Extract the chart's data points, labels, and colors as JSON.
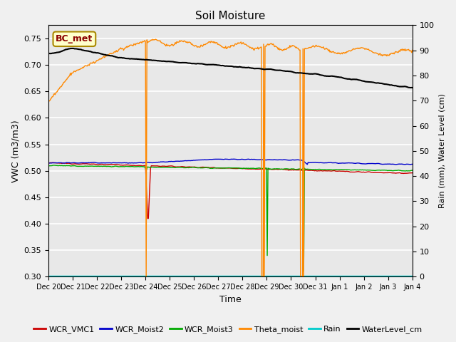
{
  "title": "Soil Moisture",
  "xlabel": "Time",
  "ylabel_left": "VWC (m3/m3)",
  "ylabel_right": "Rain (mm), Water Level (cm)",
  "ylim_left": [
    0.3,
    0.775
  ],
  "ylim_right": [
    0,
    100
  ],
  "yticks_left": [
    0.3,
    0.35,
    0.4,
    0.45,
    0.5,
    0.55,
    0.6,
    0.65,
    0.7,
    0.75
  ],
  "yticks_right": [
    0,
    10,
    20,
    30,
    40,
    50,
    60,
    70,
    80,
    90,
    100
  ],
  "fig_bg": "#f0f0f0",
  "plot_bg": "#e8e8e8",
  "grid_color": "#ffffff",
  "legend_labels": [
    "WCR_VMC1",
    "WCR_Moist2",
    "WCR_Moist3",
    "Theta_moist",
    "Rain",
    "WaterLevel_cm"
  ],
  "legend_colors": [
    "#cc0000",
    "#0000cc",
    "#00aa00",
    "#ff8800",
    "#00cccc",
    "#000000"
  ],
  "num_points": 500,
  "date_labels": [
    "Dec 20",
    "Dec 21",
    "Dec 22",
    "Dec 23",
    "Dec 24",
    "Dec 25",
    "Dec 26",
    "Dec 27",
    "Dec 28",
    "Dec 29",
    "Dec 30",
    "Dec 31",
    "Jan 1",
    "Jan 2",
    "Jan 3",
    "Jan 4"
  ],
  "xlim": [
    0,
    15
  ],
  "bc_met_label": "BC_met"
}
